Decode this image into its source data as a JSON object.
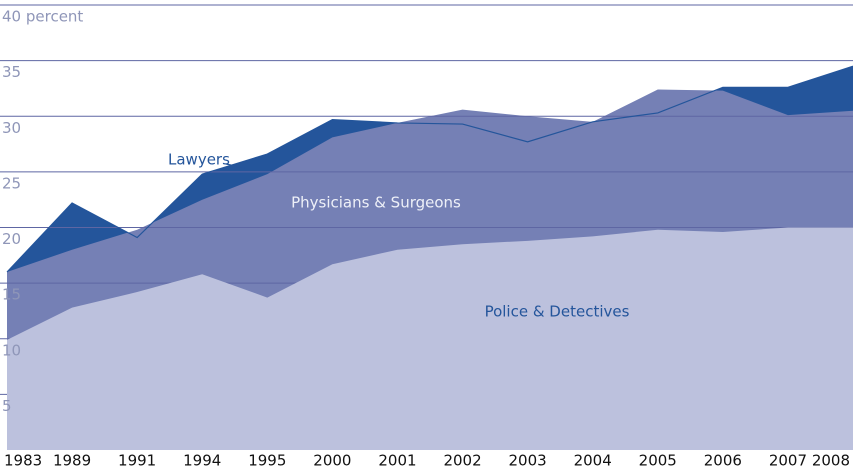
{
  "chart_data": {
    "type": "area",
    "categories": [
      "1983",
      "1989",
      "1991",
      "1994",
      "1995",
      "2000",
      "2001",
      "2002",
      "2003",
      "2004",
      "2005",
      "2006",
      "2007",
      "2008"
    ],
    "series": [
      {
        "name": "Lawyers",
        "color": "#24559b",
        "values": [
          16.0,
          22.2,
          19.1,
          24.8,
          26.6,
          29.7,
          29.4,
          29.3,
          27.7,
          29.5,
          30.3,
          32.6,
          32.6,
          34.5
        ]
      },
      {
        "name": "Physicians & Surgeons",
        "color": "#7580b5",
        "values": [
          16.0,
          18.0,
          19.8,
          22.5,
          24.8,
          28.1,
          29.4,
          30.6,
          30.0,
          29.5,
          32.4,
          32.3,
          30.1,
          30.5
        ]
      },
      {
        "name": "Police & Detectives",
        "color": "#bcc1dd",
        "values": [
          9.9,
          12.8,
          14.2,
          15.8,
          13.7,
          16.7,
          18.0,
          18.5,
          18.8,
          19.2,
          19.8,
          19.6,
          20.0,
          20.0
        ]
      }
    ],
    "ylim": [
      0,
      40
    ],
    "yticks": [
      5,
      10,
      15,
      20,
      25,
      30,
      35,
      {
        "value": 40,
        "label": "40 percent"
      }
    ],
    "grid": true
  }
}
